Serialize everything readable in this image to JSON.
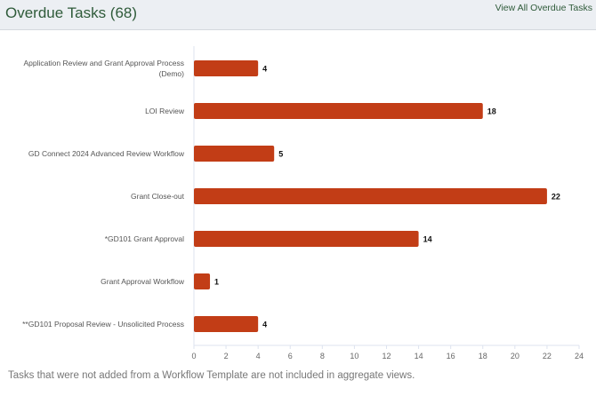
{
  "header": {
    "title": "Overdue Tasks (68)",
    "link": "View All Overdue Tasks"
  },
  "footnote": "Tasks that were not added from a Workflow Template are not included in aggregate views.",
  "chart_data": {
    "type": "bar",
    "orientation": "horizontal",
    "categories": [
      [
        "Application Review and Grant Approval Process",
        "(Demo)"
      ],
      [
        "LOI Review"
      ],
      [
        "GD Connect 2024 Advanced Review Workflow"
      ],
      [
        "Grant Close-out"
      ],
      [
        "*GD101 Grant Approval"
      ],
      [
        "Grant Approval Workflow"
      ],
      [
        "**GD101 Proposal Review - Unsolicited Process"
      ]
    ],
    "values": [
      4,
      18,
      5,
      22,
      14,
      1,
      4
    ],
    "xlim": [
      0,
      24
    ],
    "xticks": [
      0,
      2,
      4,
      6,
      8,
      10,
      12,
      14,
      16,
      18,
      20,
      22,
      24
    ],
    "bar_color": "#c23d16",
    "data_labels": true,
    "grid": false
  }
}
